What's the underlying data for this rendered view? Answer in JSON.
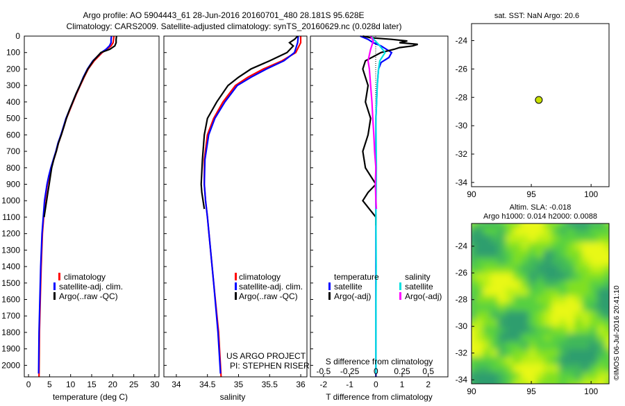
{
  "header": {
    "line1": "Argo profile: AO 5904443_61 28-Jun-2016 20160701_480 28.181S 95.628E",
    "line2": "Climatology: CARS2009. Satellite-adjusted climatology: synTS_20160629.nc (0.028d later)"
  },
  "colors": {
    "climatology": "#ff0000",
    "satellite": "#0000ff",
    "argo": "#000000",
    "sat_diff_salinity": "#00e0e0",
    "argo_diff_salinity": "#ff00ff",
    "dot": "#c8e000"
  },
  "chart_data": [
    {
      "id": "temperature",
      "type": "line",
      "xlabel": "temperature (deg C)",
      "ylabel": "",
      "xlim": [
        -1,
        31
      ],
      "ylim": [
        2070,
        0
      ],
      "y_reversed": true,
      "xticks": [
        0,
        5,
        10,
        15,
        20,
        25,
        30
      ],
      "yticks": [
        0,
        100,
        200,
        300,
        400,
        500,
        600,
        700,
        800,
        900,
        1000,
        1100,
        1200,
        1300,
        1400,
        1500,
        1600,
        1700,
        1800,
        1900,
        2000
      ],
      "legend": [
        "climatology",
        "satellite-adj. clim.",
        "Argo(..raw -QC)"
      ],
      "series": [
        {
          "name": "climatology",
          "color": "#ff0000",
          "x": [
            20.3,
            20.2,
            20.1,
            19.6,
            18.6,
            17.5,
            15.6,
            14.2,
            13.2,
            12.3,
            11.4,
            10.6,
            9.8,
            9.0,
            8.4,
            7.8,
            7.1,
            6.6,
            6.0,
            5.4,
            4.9,
            4.5,
            4.2,
            3.9,
            3.6,
            3.3,
            3.0,
            2.8,
            2.6,
            2.5
          ],
          "y": [
            0,
            20,
            40,
            60,
            80,
            100,
            150,
            200,
            250,
            300,
            350,
            400,
            450,
            500,
            550,
            600,
            650,
            700,
            750,
            800,
            850,
            900,
            950,
            1000,
            1100,
            1200,
            1400,
            1600,
            1800,
            2070
          ]
        },
        {
          "name": "satellite-adj. clim.",
          "color": "#0000ff",
          "x": [
            19.7,
            19.6,
            19.6,
            19.2,
            18.4,
            17.3,
            15.3,
            14.0,
            13.0,
            12.2,
            11.3,
            10.5,
            9.7,
            8.9,
            8.3,
            7.7,
            7.0,
            6.5,
            5.9,
            5.3,
            4.8,
            4.4,
            4.1,
            3.8,
            3.5,
            3.2,
            2.9,
            2.7,
            2.5,
            2.4
          ],
          "y": [
            0,
            20,
            40,
            60,
            80,
            100,
            150,
            200,
            250,
            300,
            350,
            400,
            450,
            500,
            550,
            600,
            650,
            700,
            750,
            800,
            850,
            900,
            950,
            1000,
            1100,
            1200,
            1400,
            1600,
            1800,
            2050
          ]
        },
        {
          "name": "Argo(..raw -QC)",
          "color": "#000000",
          "x": [
            20.9,
            20.8,
            20.8,
            20.5,
            19.3,
            17.2,
            15.4,
            14.1,
            13.1,
            12.2,
            11.3,
            10.5,
            9.7,
            9.0,
            8.4,
            7.8,
            7.1,
            6.6,
            6.0,
            5.5,
            5.2,
            4.9,
            4.6,
            4.3,
            4.0,
            3.7
          ],
          "y": [
            0,
            20,
            40,
            60,
            80,
            100,
            150,
            200,
            250,
            300,
            350,
            400,
            450,
            500,
            550,
            600,
            650,
            700,
            750,
            800,
            850,
            900,
            950,
            1000,
            1050,
            1100
          ]
        }
      ]
    },
    {
      "id": "salinity",
      "type": "line",
      "xlabel": "salinity",
      "ylabel": "",
      "xlim": [
        33.8,
        36.1
      ],
      "ylim": [
        2070,
        0
      ],
      "y_reversed": true,
      "xticks": [
        34,
        34.5,
        35,
        35.5,
        36
      ],
      "legend": [
        "climatology",
        "satellite-adj. clim.",
        "Argo(..raw -QC)"
      ],
      "annotation": [
        "US ARGO PROJECT",
        "PI: STEPHEN RISER"
      ],
      "series": [
        {
          "name": "climatology",
          "color": "#ff0000",
          "x": [
            36.0,
            36.0,
            35.92,
            35.7,
            35.4,
            35.15,
            34.95,
            34.75,
            34.6,
            34.5,
            34.45,
            34.45,
            34.47,
            34.5,
            34.55,
            34.6,
            34.68,
            34.72
          ],
          "y": [
            0,
            40,
            100,
            150,
            200,
            250,
            300,
            400,
            500,
            600,
            750,
            900,
            1000,
            1100,
            1300,
            1500,
            1800,
            2070
          ]
        },
        {
          "name": "satellite-adj. clim.",
          "color": "#0000ff",
          "x": [
            35.96,
            35.95,
            35.9,
            35.73,
            35.45,
            35.2,
            34.98,
            34.78,
            34.62,
            34.52,
            34.46,
            34.45,
            34.47,
            34.5,
            34.55,
            34.6,
            34.67,
            34.71
          ],
          "y": [
            0,
            40,
            100,
            150,
            200,
            250,
            300,
            400,
            500,
            600,
            750,
            900,
            1000,
            1100,
            1300,
            1500,
            1800,
            2050
          ]
        },
        {
          "name": "Argo(..raw -QC)",
          "color": "#000000",
          "x": [
            35.95,
            35.9,
            35.82,
            35.88,
            35.78,
            35.5,
            35.2,
            35.0,
            34.83,
            34.65,
            34.5,
            34.45,
            34.42,
            34.4,
            34.41,
            34.45
          ],
          "y": [
            0,
            20,
            40,
            60,
            100,
            150,
            200,
            250,
            300,
            400,
            500,
            600,
            750,
            900,
            950,
            1050
          ]
        }
      ]
    },
    {
      "id": "differences",
      "type": "line",
      "xlabel": "T difference from climatology",
      "xlabel_top": "S difference from climatology",
      "xlim": [
        -2.5,
        2.75
      ],
      "ylim": [
        2070,
        0
      ],
      "y_reversed": true,
      "xticks": [
        -2,
        -1,
        0,
        1,
        2
      ],
      "sticks": [
        -0.5,
        -0.25,
        0,
        0.25,
        0.5
      ],
      "sticks_labels": [
        "-0.5",
        "-0.25",
        "0",
        "0.25",
        "0.5"
      ],
      "legend_temperature": [
        "temperature",
        "satellite",
        "Argo(-adj)"
      ],
      "legend_salinity": [
        "salinity",
        "satellite",
        "Argo(-adj)"
      ],
      "series": [
        {
          "name": "T satellite",
          "color": "#0000ff",
          "x": [
            -0.6,
            -0.3,
            -0.1,
            0.2,
            0.4,
            0.6,
            0.5,
            0.2,
            0.1,
            0.05,
            0.0,
            0.0,
            0.0,
            0.0,
            0.0
          ],
          "y": [
            0,
            20,
            40,
            60,
            80,
            100,
            130,
            160,
            200,
            300,
            500,
            800,
            1200,
            1600,
            2070
          ]
        },
        {
          "name": "T Argo(-adj)",
          "color": "#000000",
          "x": [
            -0.5,
            -0.2,
            0.6,
            1.2,
            0.9,
            1.6,
            1.4,
            0.9,
            0.7,
            0.2,
            -0.4,
            -0.5,
            -0.3,
            -0.4,
            -0.2,
            -0.3,
            -0.5,
            -0.4,
            -0.2,
            0.0,
            -0.3,
            -0.5,
            -0.2,
            0.0,
            0.0
          ],
          "y": [
            0,
            10,
            20,
            30,
            40,
            50,
            60,
            70,
            80,
            100,
            150,
            200,
            300,
            400,
            500,
            600,
            700,
            800,
            850,
            900,
            950,
            1000,
            1060,
            1100,
            1150
          ]
        },
        {
          "name": "S satellite",
          "color": "#00e0e0",
          "x": [
            -0.2,
            0.1,
            0.35,
            0.15,
            0.1,
            0.05,
            0.0,
            0.02,
            0.0,
            0.01,
            0.0,
            0.0,
            0.0
          ],
          "y": [
            0,
            50,
            100,
            150,
            200,
            300,
            500,
            800,
            1100,
            1400,
            1700,
            1900,
            2050
          ]
        },
        {
          "name": "S Argo(-adj)",
          "color": "#ff00ff",
          "x": [
            -0.2,
            -0.1,
            -0.2,
            -0.3,
            -0.25,
            -0.2,
            -0.15,
            -0.12,
            -0.08,
            -0.05,
            0.0,
            -0.02,
            0.0,
            0.02
          ],
          "y": [
            0,
            30,
            80,
            150,
            200,
            300,
            400,
            500,
            600,
            700,
            800,
            900,
            1000,
            1050
          ]
        }
      ]
    },
    {
      "id": "sst_map",
      "type": "scatter",
      "title": "sat. SST: NaN Argo: 20.6",
      "xlim": [
        90,
        101.5
      ],
      "ylim": [
        -34.3,
        -22.8
      ],
      "xticks": [
        90,
        95,
        100
      ],
      "yticks": [
        -24,
        -26,
        -28,
        -30,
        -32,
        -34
      ],
      "points": [
        {
          "x": 95.628,
          "y": -28.181
        }
      ]
    },
    {
      "id": "sla_map",
      "type": "heatmap",
      "title_line1": "Altim. SLA: -0.018",
      "title_line2": "Argo h1000: 0.014 h2000: 0.0088",
      "xlim": [
        90,
        101.5
      ],
      "ylim": [
        -34.3,
        -22.3
      ],
      "xticks": [
        90,
        95,
        100
      ],
      "yticks": [
        -24,
        -26,
        -28,
        -30,
        -32,
        -34
      ],
      "palette": [
        "#2e9e6e",
        "#3fb85a",
        "#57d040",
        "#80e024",
        "#bdf012",
        "#e8f812"
      ]
    }
  ],
  "footer": {
    "credit": "©IMOS 06-Jul-2016 20:41:10"
  }
}
